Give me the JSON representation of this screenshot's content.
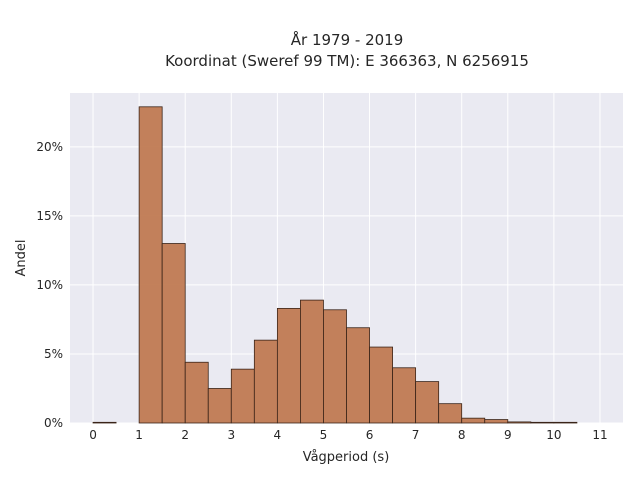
{
  "chart_data": {
    "type": "bar",
    "title_lines": [
      "År 1979 - 2019",
      "Koordinat (Sweref 99 TM): E 366363, N 6256915"
    ],
    "xlabel": "Vågperiod (s)",
    "ylabel": "Andel",
    "xlim": [
      -0.5,
      11.5
    ],
    "ylim": [
      0,
      23.9
    ],
    "x_ticks": [
      0,
      1,
      2,
      3,
      4,
      5,
      6,
      7,
      8,
      9,
      10,
      11
    ],
    "x_tick_labels": [
      "0",
      "1",
      "2",
      "3",
      "4",
      "5",
      "6",
      "7",
      "8",
      "9",
      "10",
      "11"
    ],
    "y_ticks": [
      0,
      5,
      10,
      15,
      20
    ],
    "y_tick_labels": [
      "0%",
      "5%",
      "10%",
      "15%",
      "20%"
    ],
    "bin_width": 0.5,
    "bin_starts": [
      0,
      0.5,
      1,
      1.5,
      2,
      2.5,
      3,
      3.5,
      4,
      4.5,
      5,
      5.5,
      6,
      6.5,
      7,
      7.5,
      8,
      8.5,
      9,
      9.5,
      10,
      10.5
    ],
    "values": [
      0.05,
      0,
      22.9,
      13.0,
      4.4,
      2.5,
      3.9,
      6.0,
      8.3,
      8.9,
      8.2,
      6.9,
      5.5,
      4.0,
      3.0,
      1.4,
      0.35,
      0.25,
      0.08,
      0.05,
      0.05,
      0
    ],
    "grid": true,
    "legend": "none",
    "colors": {
      "bar_fill": "#c07a52",
      "bar_edge": "#3a2418",
      "plot_background": "#eaeaf2",
      "grid": "#ffffff"
    }
  }
}
